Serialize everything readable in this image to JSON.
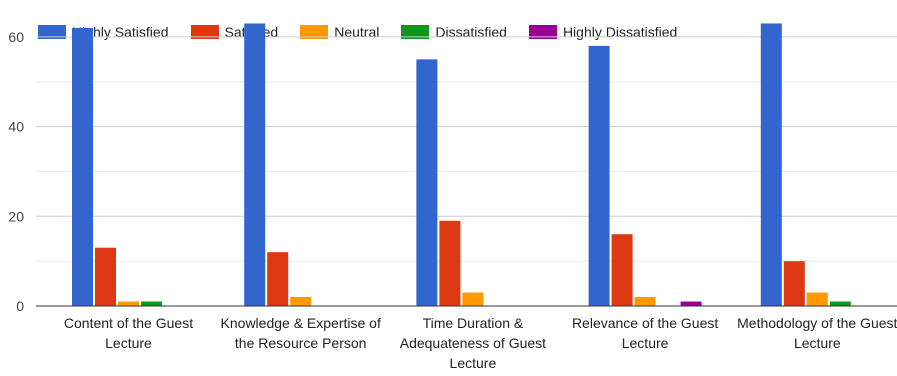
{
  "chart_data": {
    "type": "bar",
    "title": "",
    "xlabel": "",
    "ylabel": "",
    "ylim": [
      0,
      66
    ],
    "yticks": [
      0,
      20,
      40,
      60
    ],
    "grid": true,
    "legend_position": "top",
    "categories": [
      [
        "Content of the Guest",
        "Lecture"
      ],
      [
        "Knowledge & Expertise of",
        "the Resource Person"
      ],
      [
        "Time Duration &",
        "Adequateness of Guest",
        "Lecture"
      ],
      [
        "Relevance of the Guest",
        "Lecture"
      ],
      [
        "Methodology of the Guest",
        "Lecture"
      ]
    ],
    "series": [
      {
        "name": "Highly Satisfied",
        "color": "#3366cc",
        "values": [
          62,
          63,
          55,
          58,
          63
        ]
      },
      {
        "name": "Satisfied",
        "color": "#dc3912",
        "values": [
          13,
          12,
          19,
          16,
          10
        ]
      },
      {
        "name": "Neutral",
        "color": "#ff9900",
        "values": [
          1,
          2,
          3,
          2,
          3
        ]
      },
      {
        "name": "Dissatisfied",
        "color": "#109618",
        "values": [
          1,
          0,
          0,
          0,
          1
        ]
      },
      {
        "name": "Highly Dissatisfied",
        "color": "#990099",
        "values": [
          0,
          0,
          0,
          1,
          0
        ]
      }
    ]
  }
}
